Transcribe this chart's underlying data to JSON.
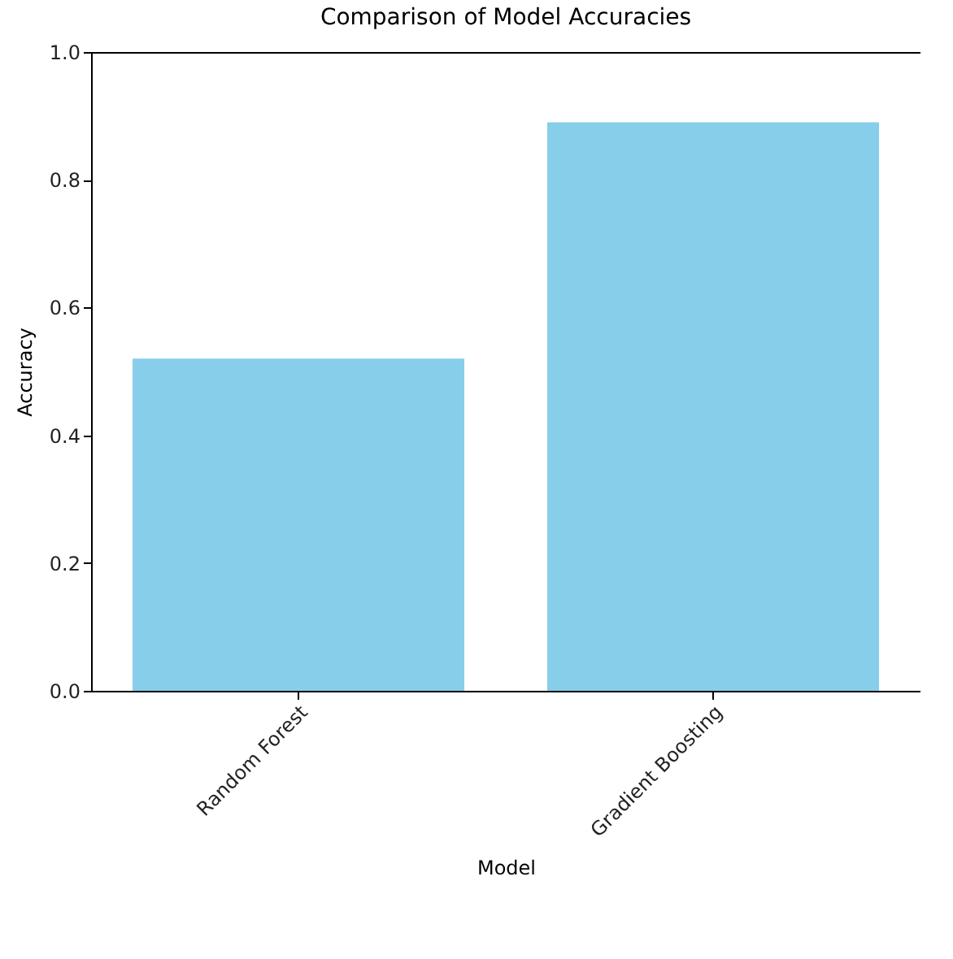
{
  "chart_data": {
    "type": "bar",
    "title": "Comparison of Model Accuracies",
    "xlabel": "Model",
    "ylabel": "Accuracy",
    "categories": [
      "Random Forest",
      "Gradient Boosting"
    ],
    "values": [
      0.52,
      0.89
    ],
    "color": "#87ceeb",
    "ylim": [
      0,
      1
    ],
    "yticks": [
      {
        "value": 0,
        "label": "0.0"
      },
      0.2,
      0.4,
      0.6,
      0.8,
      {
        "value": 1,
        "label": "1.0"
      }
    ],
    "grid": false
  }
}
